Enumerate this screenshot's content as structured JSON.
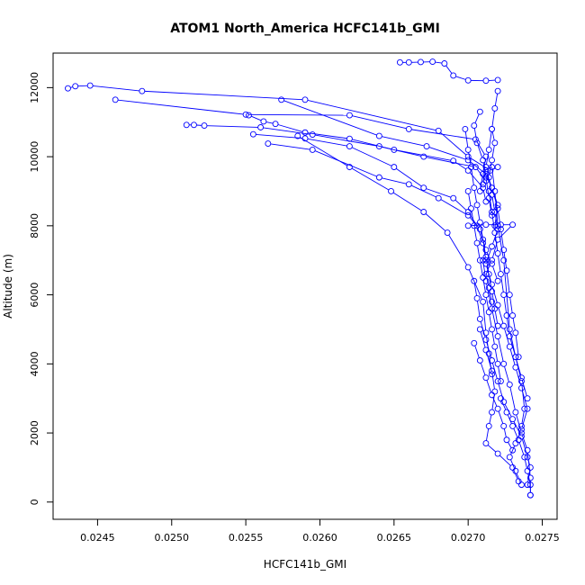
{
  "chart_data": {
    "type": "line",
    "title": "ATOM1 North_America HCFC141b_GMI",
    "xlabel": "HCFC141b_GMI",
    "ylabel": "Altitude (m)",
    "xlim": [
      0.0242,
      0.0276
    ],
    "ylim": [
      -500,
      13000
    ],
    "xticks": [
      0.0245,
      0.025,
      0.0255,
      0.026,
      0.0265,
      0.027,
      0.0275
    ],
    "xtick_labels": [
      "0.0245",
      "0.0250",
      "0.0255",
      "0.0260",
      "0.0265",
      "0.0270",
      "0.0275"
    ],
    "yticks": [
      0,
      2000,
      4000,
      6000,
      8000,
      10000,
      12000
    ],
    "ytick_labels": [
      "0",
      "2000",
      "4000",
      "6000",
      "8000",
      "10000",
      "12000"
    ],
    "grid": false,
    "series_color": "#0000ff",
    "marker": "open-circle",
    "series": [
      {
        "points": [
          [
            0.02654,
            12730
          ],
          [
            0.0266,
            12730
          ],
          [
            0.02668,
            12740
          ],
          [
            0.02676,
            12750
          ],
          [
            0.02684,
            12700
          ],
          [
            0.0269,
            12350
          ],
          [
            0.027,
            12210
          ],
          [
            0.02712,
            12200
          ],
          [
            0.0272,
            12220
          ]
        ]
      },
      {
        "points": [
          [
            0.0243,
            11980
          ],
          [
            0.02435,
            12040
          ],
          [
            0.02445,
            12060
          ],
          [
            0.0248,
            11900
          ],
          [
            0.0259,
            11650
          ],
          [
            0.0268,
            10750
          ],
          [
            0.027,
            10000
          ],
          [
            0.02715,
            9600
          ],
          [
            0.0272,
            9700
          ]
        ]
      },
      {
        "points": [
          [
            0.02462,
            11650
          ],
          [
            0.0255,
            11220
          ],
          [
            0.0262,
            11200
          ],
          [
            0.0266,
            10800
          ],
          [
            0.02705,
            10500
          ],
          [
            0.02712,
            10000
          ],
          [
            0.0271,
            9500
          ],
          [
            0.02708,
            9000
          ]
        ]
      },
      {
        "points": [
          [
            0.0251,
            10920
          ],
          [
            0.02515,
            10920
          ],
          [
            0.02522,
            10900
          ],
          [
            0.0256,
            10850
          ],
          [
            0.02595,
            10640
          ],
          [
            0.0264,
            10300
          ],
          [
            0.0267,
            10000
          ],
          [
            0.02705,
            9700
          ],
          [
            0.02712,
            9300
          ]
        ]
      },
      {
        "points": [
          [
            0.02552,
            11200
          ],
          [
            0.02562,
            11020
          ],
          [
            0.0257,
            10950
          ],
          [
            0.0259,
            10700
          ],
          [
            0.0262,
            10520
          ],
          [
            0.0265,
            10200
          ],
          [
            0.0269,
            9880
          ],
          [
            0.027,
            9600
          ],
          [
            0.0271,
            9100
          ],
          [
            0.02712,
            8700
          ]
        ]
      },
      {
        "points": [
          [
            0.02555,
            10650
          ],
          [
            0.0259,
            10530
          ],
          [
            0.0262,
            10300
          ],
          [
            0.0265,
            9700
          ],
          [
            0.0267,
            9100
          ],
          [
            0.0269,
            8800
          ],
          [
            0.027,
            8400
          ],
          [
            0.02706,
            8000
          ],
          [
            0.0271,
            7500
          ],
          [
            0.02712,
            7000
          ]
        ]
      },
      {
        "points": [
          [
            0.02565,
            10380
          ],
          [
            0.02595,
            10200
          ],
          [
            0.0264,
            9400
          ],
          [
            0.0266,
            9200
          ],
          [
            0.0268,
            8800
          ],
          [
            0.027,
            8300
          ],
          [
            0.02708,
            7900
          ],
          [
            0.02712,
            7300
          ],
          [
            0.02716,
            6900
          ],
          [
            0.0272,
            6400
          ]
        ]
      },
      {
        "points": [
          [
            0.02574,
            11650
          ],
          [
            0.0264,
            10600
          ],
          [
            0.02672,
            10300
          ],
          [
            0.027,
            9900
          ],
          [
            0.02712,
            9500
          ],
          [
            0.02716,
            9100
          ],
          [
            0.0272,
            8600
          ],
          [
            0.02718,
            8000
          ]
        ]
      },
      {
        "points": [
          [
            0.02585,
            10600
          ],
          [
            0.0262,
            9700
          ],
          [
            0.02648,
            9000
          ],
          [
            0.0267,
            8400
          ],
          [
            0.02686,
            7800
          ],
          [
            0.027,
            6800
          ],
          [
            0.0271,
            5800
          ],
          [
            0.02712,
            4900
          ],
          [
            0.02714,
            4300
          ],
          [
            0.02716,
            3700
          ]
        ]
      },
      {
        "points": [
          [
            0.027,
            8000
          ],
          [
            0.02712,
            8030
          ],
          [
            0.02722,
            8030
          ],
          [
            0.0273,
            8030
          ],
          [
            0.0272,
            7600
          ],
          [
            0.02716,
            7000
          ],
          [
            0.02712,
            6600
          ],
          [
            0.02714,
            6200
          ],
          [
            0.02716,
            5800
          ]
        ]
      },
      {
        "points": [
          [
            0.02704,
            6400
          ],
          [
            0.02706,
            5900
          ],
          [
            0.02708,
            5300
          ],
          [
            0.02712,
            4700
          ],
          [
            0.02716,
            4100
          ],
          [
            0.0272,
            3500
          ],
          [
            0.02724,
            2900
          ],
          [
            0.0273,
            2400
          ],
          [
            0.02736,
            1900
          ],
          [
            0.0274,
            1300
          ],
          [
            0.02742,
            1000
          ],
          [
            0.0274,
            500
          ]
        ]
      },
      {
        "points": [
          [
            0.0271,
            7000
          ],
          [
            0.02712,
            6400
          ],
          [
            0.02716,
            5600
          ],
          [
            0.0272,
            4800
          ],
          [
            0.02724,
            4000
          ],
          [
            0.02728,
            3400
          ],
          [
            0.02732,
            2600
          ],
          [
            0.02736,
            2000
          ],
          [
            0.0274,
            1500
          ],
          [
            0.02742,
            700
          ],
          [
            0.02742,
            200
          ]
        ]
      },
      {
        "points": [
          [
            0.02708,
            5000
          ],
          [
            0.02712,
            4400
          ],
          [
            0.02716,
            3800
          ],
          [
            0.02718,
            3200
          ],
          [
            0.02716,
            2600
          ],
          [
            0.02714,
            2200
          ],
          [
            0.02712,
            1700
          ],
          [
            0.0272,
            1400
          ],
          [
            0.0273,
            1000
          ],
          [
            0.02734,
            600
          ]
        ]
      },
      {
        "points": [
          [
            0.02714,
            9000
          ],
          [
            0.02716,
            8400
          ],
          [
            0.02718,
            7800
          ],
          [
            0.0272,
            7200
          ],
          [
            0.02722,
            6600
          ],
          [
            0.02724,
            6000
          ],
          [
            0.02726,
            5400
          ],
          [
            0.02728,
            4800
          ],
          [
            0.02732,
            4200
          ],
          [
            0.02736,
            3600
          ],
          [
            0.0274,
            3000
          ]
        ]
      },
      {
        "points": [
          [
            0.02716,
            9700
          ],
          [
            0.02718,
            9000
          ],
          [
            0.0272,
            8000
          ],
          [
            0.02724,
            7000
          ],
          [
            0.02728,
            5000
          ],
          [
            0.02732,
            4200
          ],
          [
            0.02736,
            3500
          ],
          [
            0.02738,
            2700
          ],
          [
            0.02736,
            2200
          ]
        ]
      },
      {
        "points": [
          [
            0.0272,
            11900
          ],
          [
            0.02718,
            11400
          ],
          [
            0.02716,
            10800
          ],
          [
            0.02714,
            10200
          ],
          [
            0.02712,
            9700
          ],
          [
            0.0271,
            9200
          ]
        ]
      },
      {
        "points": [
          [
            0.02708,
            11300
          ],
          [
            0.02704,
            10900
          ],
          [
            0.02706,
            10400
          ],
          [
            0.0271,
            9900
          ],
          [
            0.02712,
            9400
          ],
          [
            0.02714,
            8800
          ],
          [
            0.02716,
            8300
          ]
        ]
      },
      {
        "points": [
          [
            0.02698,
            10800
          ],
          [
            0.027,
            10200
          ],
          [
            0.02702,
            9700
          ],
          [
            0.02704,
            9100
          ],
          [
            0.02706,
            8600
          ],
          [
            0.02708,
            8100
          ],
          [
            0.0271,
            7600
          ],
          [
            0.02712,
            7100
          ],
          [
            0.02714,
            6600
          ],
          [
            0.02716,
            6100
          ],
          [
            0.02718,
            5600
          ],
          [
            0.0272,
            5100
          ]
        ]
      },
      {
        "points": [
          [
            0.02722,
            3000
          ],
          [
            0.02726,
            2600
          ],
          [
            0.0273,
            2200
          ],
          [
            0.02734,
            1800
          ],
          [
            0.02738,
            1300
          ],
          [
            0.0274,
            900
          ],
          [
            0.02742,
            500
          ],
          [
            0.02742,
            200
          ]
        ]
      },
      {
        "points": [
          [
            0.02704,
            4600
          ],
          [
            0.02708,
            4100
          ],
          [
            0.02712,
            3600
          ],
          [
            0.02716,
            3100
          ],
          [
            0.0272,
            2700
          ],
          [
            0.02724,
            2200
          ],
          [
            0.02726,
            1800
          ],
          [
            0.0273,
            1500
          ]
        ]
      },
      {
        "points": [
          [
            0.02712,
            9600
          ],
          [
            0.02716,
            9100
          ],
          [
            0.0272,
            8500
          ],
          [
            0.02722,
            7900
          ],
          [
            0.02724,
            7300
          ],
          [
            0.02726,
            6700
          ],
          [
            0.02728,
            6000
          ],
          [
            0.0273,
            5400
          ],
          [
            0.02732,
            4900
          ],
          [
            0.02734,
            4200
          ]
        ]
      },
      {
        "points": [
          [
            0.027,
            9000
          ],
          [
            0.02702,
            8500
          ],
          [
            0.02704,
            8000
          ],
          [
            0.02706,
            7500
          ],
          [
            0.02708,
            7000
          ],
          [
            0.0271,
            6500
          ],
          [
            0.02712,
            6000
          ],
          [
            0.02714,
            5500
          ],
          [
            0.02716,
            5000
          ],
          [
            0.02718,
            4500
          ],
          [
            0.0272,
            4000
          ],
          [
            0.02722,
            3500
          ]
        ]
      },
      {
        "points": [
          [
            0.02716,
            10800
          ],
          [
            0.02718,
            10400
          ],
          [
            0.02716,
            9900
          ],
          [
            0.02714,
            9400
          ],
          [
            0.02716,
            8900
          ],
          [
            0.02718,
            8400
          ],
          [
            0.0272,
            7900
          ],
          [
            0.02716,
            7400
          ],
          [
            0.02712,
            6900
          ],
          [
            0.02716,
            6300
          ],
          [
            0.0272,
            5700
          ],
          [
            0.02724,
            5100
          ],
          [
            0.02728,
            4500
          ],
          [
            0.02732,
            3900
          ],
          [
            0.02736,
            3300
          ],
          [
            0.0274,
            2700
          ],
          [
            0.02736,
            2100
          ],
          [
            0.02732,
            1700
          ],
          [
            0.02728,
            1300
          ],
          [
            0.02732,
            900
          ],
          [
            0.02736,
            500
          ]
        ]
      }
    ]
  }
}
